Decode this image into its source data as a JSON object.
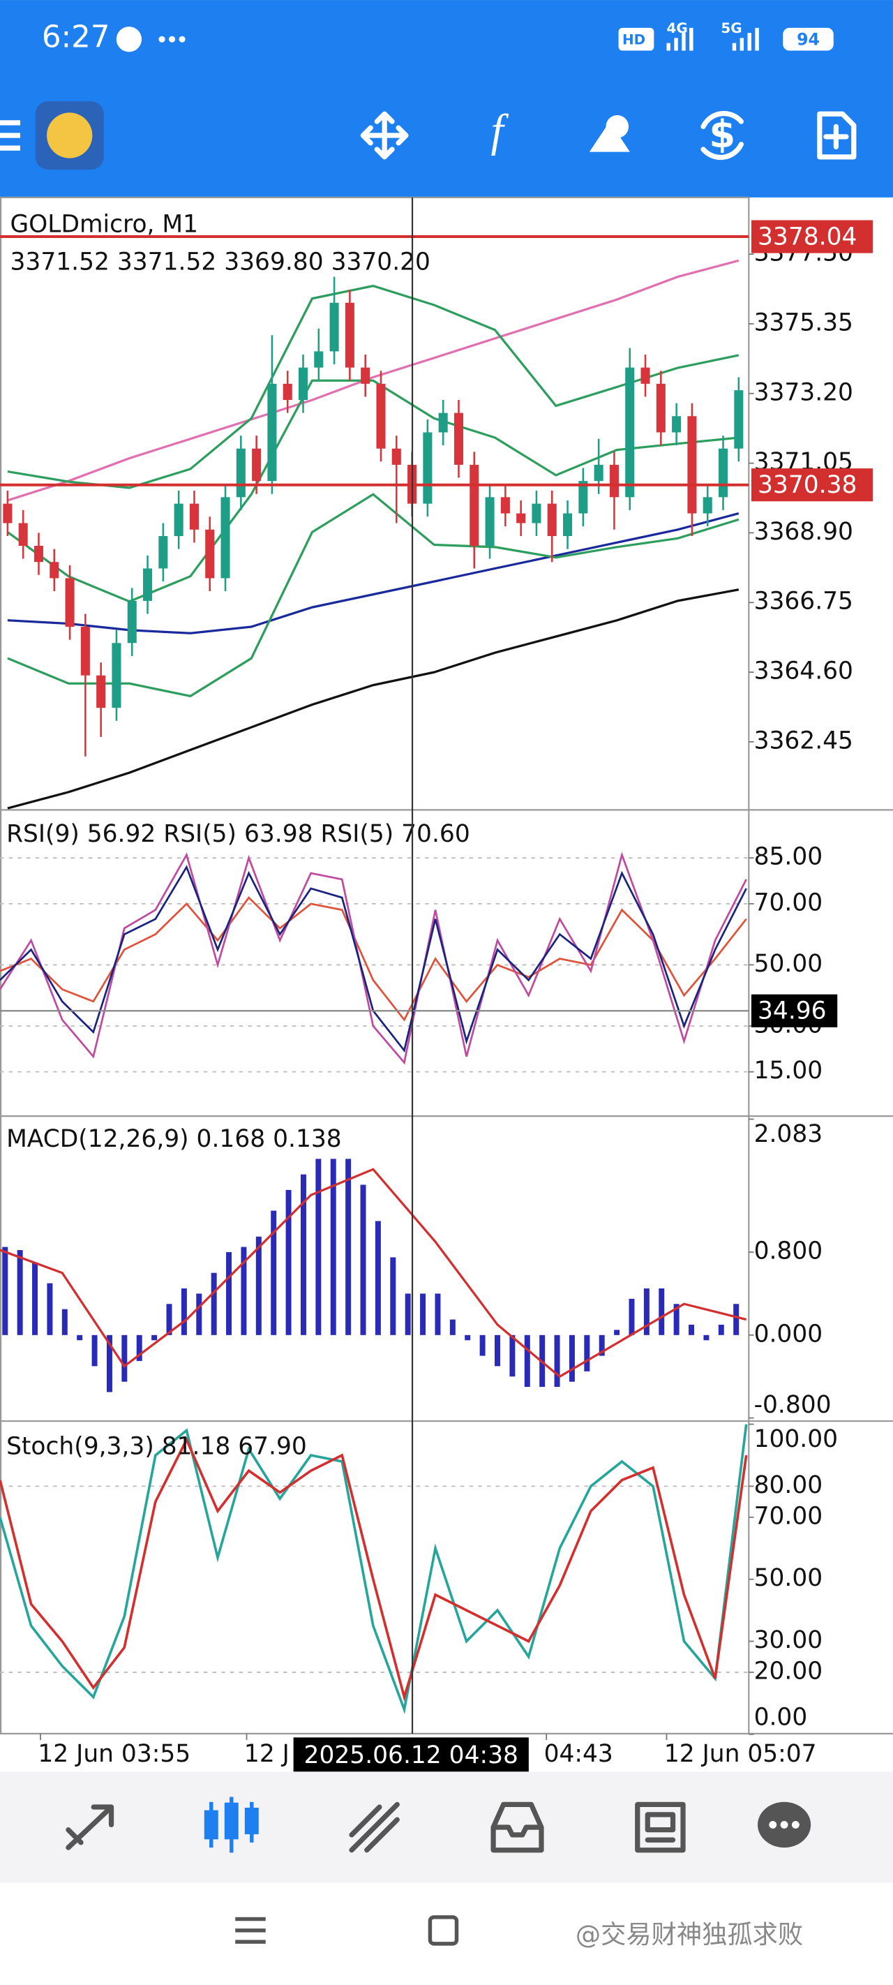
{
  "status_bar": {
    "time": "6:27",
    "hd": "HD",
    "net4g": "4G",
    "net5g": "5G",
    "battery": "94"
  },
  "toolbar": {
    "indicator_icon": "f",
    "trade_icon": "$"
  },
  "chart": {
    "price_panel": {
      "symbol": "GOLDmicro, M1",
      "ohlc": "3371.52 3371.52 3369.80 3370.20",
      "ylim": [
        3360.35,
        3379.25
      ],
      "yticks": [
        {
          "value": 3377.5,
          "label": "3377.50"
        },
        3375.35,
        {
          "value": 3373.2,
          "label": "3373.20"
        },
        3371.05,
        {
          "value": 3368.9,
          "label": "3368.90"
        },
        3366.75,
        {
          "value": 3364.6,
          "label": "3364.60"
        },
        3362.45
      ],
      "up_color": "#1e9e87",
      "down_color": "#d8343c",
      "candles": [
        [
          3369.8,
          3370.2,
          3368.8,
          3369.2
        ],
        [
          3369.2,
          3369.6,
          3368.1,
          3368.5
        ],
        [
          3368.5,
          3368.9,
          3367.6,
          3368.0
        ],
        [
          3368.0,
          3368.4,
          3367.1,
          3367.5
        ],
        [
          3367.5,
          3367.9,
          3365.6,
          3366.0
        ],
        [
          3366.0,
          3366.4,
          3362.0,
          3364.5
        ],
        [
          3364.5,
          3364.9,
          3362.6,
          3363.5
        ],
        [
          3363.5,
          3365.9,
          3363.1,
          3365.5
        ],
        [
          3365.5,
          3367.2,
          3365.1,
          3366.8
        ],
        [
          3366.8,
          3368.2,
          3366.4,
          3367.8
        ],
        [
          3367.8,
          3369.2,
          3367.4,
          3368.8
        ],
        [
          3368.8,
          3370.2,
          3368.4,
          3369.8
        ],
        [
          3369.8,
          3370.2,
          3368.6,
          3369.0
        ],
        [
          3369.0,
          3369.4,
          3367.1,
          3367.5
        ],
        [
          3367.5,
          3370.4,
          3367.1,
          3370.0
        ],
        [
          3370.0,
          3371.9,
          3369.6,
          3371.5
        ],
        [
          3371.5,
          3371.9,
          3370.1,
          3370.5
        ],
        [
          3370.5,
          3375.0,
          3370.1,
          3373.5
        ],
        [
          3373.5,
          3373.9,
          3372.6,
          3373.0
        ],
        [
          3373.0,
          3374.4,
          3372.6,
          3374.0
        ],
        [
          3374.0,
          3375.2,
          3373.6,
          3374.5
        ],
        [
          3374.5,
          3376.8,
          3374.1,
          3376.0
        ],
        [
          3376.0,
          3376.4,
          3373.6,
          3374.0
        ],
        [
          3374.0,
          3374.4,
          3373.1,
          3373.5
        ],
        [
          3373.5,
          3373.9,
          3371.1,
          3371.5
        ],
        [
          3371.5,
          3371.9,
          3369.2,
          3371.0
        ],
        [
          3371.0,
          3371.4,
          3369.4,
          3369.8
        ],
        [
          3369.8,
          3372.4,
          3369.4,
          3372.0
        ],
        [
          3372.0,
          3373.0,
          3371.6,
          3372.6
        ],
        [
          3372.6,
          3373.0,
          3370.6,
          3371.0
        ],
        [
          3371.0,
          3371.4,
          3367.8,
          3368.5
        ],
        [
          3368.5,
          3370.4,
          3368.1,
          3370.0
        ],
        [
          3370.0,
          3370.4,
          3369.1,
          3369.5
        ],
        [
          3369.5,
          3369.9,
          3368.8,
          3369.2
        ],
        [
          3369.2,
          3370.2,
          3368.8,
          3369.8
        ],
        [
          3369.8,
          3370.2,
          3368.0,
          3368.8
        ],
        [
          3368.8,
          3369.9,
          3368.4,
          3369.5
        ],
        [
          3369.5,
          3370.9,
          3369.1,
          3370.5
        ],
        [
          3370.5,
          3371.8,
          3370.1,
          3371.0
        ],
        [
          3371.0,
          3371.4,
          3369.0,
          3370.0
        ],
        [
          3370.0,
          3374.6,
          3369.6,
          3374.0
        ],
        [
          3374.0,
          3374.4,
          3373.1,
          3373.5
        ],
        [
          3373.5,
          3373.9,
          3371.6,
          3372.0
        ],
        [
          3372.0,
          3372.9,
          3371.6,
          3372.5
        ],
        [
          3372.5,
          3372.9,
          3368.8,
          3369.5
        ],
        [
          3369.5,
          3370.4,
          3369.1,
          3370.0
        ],
        [
          3370.0,
          3371.9,
          3369.6,
          3371.5
        ],
        [
          3371.5,
          3373.7,
          3371.1,
          3373.3
        ]
      ],
      "lines": [
        {
          "color": "#111111",
          "values": [
            3360.4,
            3360.9,
            3361.5,
            3362.2,
            3362.9,
            3363.6,
            3364.2,
            3364.6,
            3365.2,
            3365.7,
            3366.2,
            3366.8,
            3367.15
          ]
        },
        {
          "color": "#1a2a9c",
          "values": [
            3366.2,
            3366.1,
            3365.9,
            3365.8,
            3366.0,
            3366.6,
            3367.0,
            3367.4,
            3367.8,
            3368.2,
            3368.6,
            3369.0,
            3369.5
          ]
        },
        {
          "color": "#e070b0",
          "values": [
            3369.9,
            3370.5,
            3371.2,
            3371.8,
            3372.4,
            3373.0,
            3373.7,
            3374.3,
            3374.9,
            3375.5,
            3376.1,
            3376.8,
            3377.3
          ]
        },
        {
          "color": "#2e9e5e",
          "values": [
            3370.79,
            3370.48,
            3370.29,
            3370.87,
            3372.43,
            3376.13,
            3376.52,
            3375.93,
            3375.16,
            3372.82,
            3373.4,
            3373.99,
            3374.38
          ]
        },
        {
          "color": "#2e9e5e",
          "values": [
            3368.92,
            3367.56,
            3366.78,
            3367.56,
            3370.09,
            3373.6,
            3373.6,
            3372.43,
            3371.84,
            3370.68,
            3371.46,
            3371.65,
            3371.84
          ]
        },
        {
          "color": "#2e9e5e",
          "values": [
            3365.03,
            3364.25,
            3364.25,
            3363.86,
            3365.03,
            3368.92,
            3370.09,
            3368.53,
            3368.46,
            3368.14,
            3368.46,
            3368.73,
            3369.31
          ]
        }
      ],
      "levels": [
        {
          "value": 3378.04,
          "color": "#d32f2f"
        },
        {
          "value": 3370.38,
          "color": "#d32f2f"
        }
      ]
    },
    "rsi_panel": {
      "label": "RSI(9) 56.92 RSI(5) 63.98 RSI(5) 70.60",
      "ylim": [
        0.5,
        100.3
      ],
      "yticks": [
        {
          "value": 85,
          "label": "85.00"
        },
        {
          "value": 70,
          "label": "70.00"
        },
        {
          "value": 50,
          "label": "50.00"
        },
        {
          "value": 30,
          "label": "30.00"
        },
        {
          "value": 15,
          "label": "15.00"
        }
      ],
      "cursor": {
        "value": 34.96
      },
      "series": [
        {
          "color": "#e0523a",
          "values": [
            48,
            52,
            42,
            38,
            55,
            60,
            70,
            58,
            72,
            62,
            70,
            68,
            45,
            32,
            52,
            38,
            50,
            46,
            52,
            50,
            68,
            58,
            40,
            52,
            65
          ]
        },
        {
          "color": "#c04a9f",
          "values": [
            42,
            58,
            32,
            20,
            62,
            68,
            86,
            50,
            85,
            58,
            80,
            78,
            30,
            18,
            68,
            20,
            58,
            40,
            65,
            48,
            86,
            58,
            25,
            58,
            78
          ]
        },
        {
          "color": "#1a237e",
          "values": [
            45,
            55,
            38,
            28,
            60,
            65,
            82,
            55,
            80,
            60,
            75,
            72,
            35,
            22,
            65,
            25,
            55,
            45,
            60,
            52,
            80,
            60,
            30,
            55,
            75
          ]
        }
      ]
    },
    "macd_panel": {
      "label": "MACD(12,26,9) 0.168 0.138",
      "ylim": [
        -0.83,
        2.1
      ],
      "yticks": [
        2.083,
        {
          "value": 0.8,
          "label": "0.800"
        },
        {
          "value": 0,
          "label": "0.000"
        },
        {
          "value": -0.8,
          "label": "-0.800"
        }
      ],
      "bar_color": "#2a2ab8",
      "histogram": [
        0.85,
        0.82,
        0.7,
        0.5,
        0.25,
        -0.05,
        -0.3,
        -0.55,
        -0.45,
        -0.25,
        -0.05,
        0.3,
        0.45,
        0.4,
        0.6,
        0.8,
        0.85,
        0.95,
        1.2,
        1.4,
        1.55,
        1.7,
        1.7,
        1.7,
        1.45,
        1.1,
        0.75,
        0.4,
        0.4,
        0.4,
        0.15,
        -0.05,
        -0.2,
        -0.3,
        -0.4,
        -0.5,
        -0.5,
        -0.5,
        -0.45,
        -0.35,
        -0.2,
        0.05,
        0.35,
        0.45,
        0.45,
        0.3,
        0.1,
        -0.05,
        0.1,
        0.3
      ],
      "signal": {
        "color": "#d32f2f",
        "values": [
          0.82,
          0.6,
          -0.3,
          0.15,
          0.75,
          1.35,
          1.6,
          0.9,
          0.1,
          -0.4,
          -0.05,
          0.3,
          0.15
        ]
      }
    },
    "stoch_panel": {
      "label": "Stoch(9,3,3) 81.18 67.90",
      "ylim": [
        0.2,
        100.6
      ],
      "yticks": [
        {
          "value": 100,
          "label": "100.00"
        },
        {
          "value": 80,
          "label": "80.00"
        },
        {
          "value": 70,
          "label": "70.00"
        },
        {
          "value": 50,
          "label": "50.00"
        },
        {
          "value": 30,
          "label": "30.00"
        },
        {
          "value": 20,
          "label": "20.00"
        },
        {
          "value": 0,
          "label": "0.00"
        }
      ],
      "series": [
        {
          "color": "#26a69a",
          "values": [
            70,
            35,
            22,
            12,
            38,
            90,
            98,
            57,
            92,
            76,
            90,
            88,
            35,
            8,
            60,
            30,
            40,
            25,
            60,
            80,
            88,
            80,
            30,
            18,
            100
          ]
        },
        {
          "color": "#d32f2f",
          "values": [
            82,
            42,
            30,
            15,
            28,
            75,
            95,
            72,
            85,
            78,
            85,
            90,
            50,
            12,
            45,
            40,
            35,
            30,
            48,
            72,
            82,
            86,
            45,
            18,
            90
          ]
        }
      ]
    },
    "time_axis": {
      "labels": [
        "12 Jun 03:55",
        "12 J",
        "04:43",
        "12 Jun 05:07"
      ],
      "cursor": "2025.06.12 04:38"
    }
  },
  "watermark": "@交易财神独孤求败"
}
